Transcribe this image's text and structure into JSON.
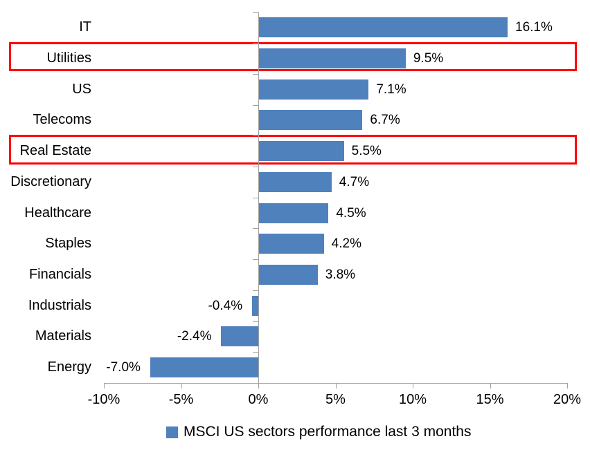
{
  "chart_data": {
    "type": "bar",
    "orientation": "horizontal",
    "categories": [
      "IT",
      "Utilities",
      "US",
      "Telecoms",
      "Real Estate",
      "Discretionary",
      "Healthcare",
      "Staples",
      "Financials",
      "Industrials",
      "Materials",
      "Energy"
    ],
    "values": [
      16.1,
      9.5,
      7.1,
      6.7,
      5.5,
      4.7,
      4.5,
      4.2,
      3.8,
      -0.4,
      -2.4,
      -7.0
    ],
    "data_labels": [
      "16.1%",
      "9.5%",
      "7.1%",
      "6.7%",
      "5.5%",
      "4.7%",
      "4.5%",
      "4.2%",
      "3.8%",
      "-0.4%",
      "-2.4%",
      "-7.0%"
    ],
    "x_axis": {
      "tick_labels": [
        "-10%",
        "-5%",
        "0%",
        "5%",
        "10%",
        "15%",
        "20%"
      ],
      "tick_values": [
        -10,
        -5,
        0,
        5,
        10,
        15,
        20
      ],
      "range": [
        -10,
        20
      ]
    },
    "legend": {
      "label": "MSCI US sectors performance last 3 months",
      "position": "bottom"
    },
    "bar_color": "#4F81BD",
    "axis_color": "#A0A0A0",
    "highlight_color": "#FF0000",
    "highlighted_categories": [
      "Utilities",
      "Real Estate"
    ],
    "grid": false
  }
}
